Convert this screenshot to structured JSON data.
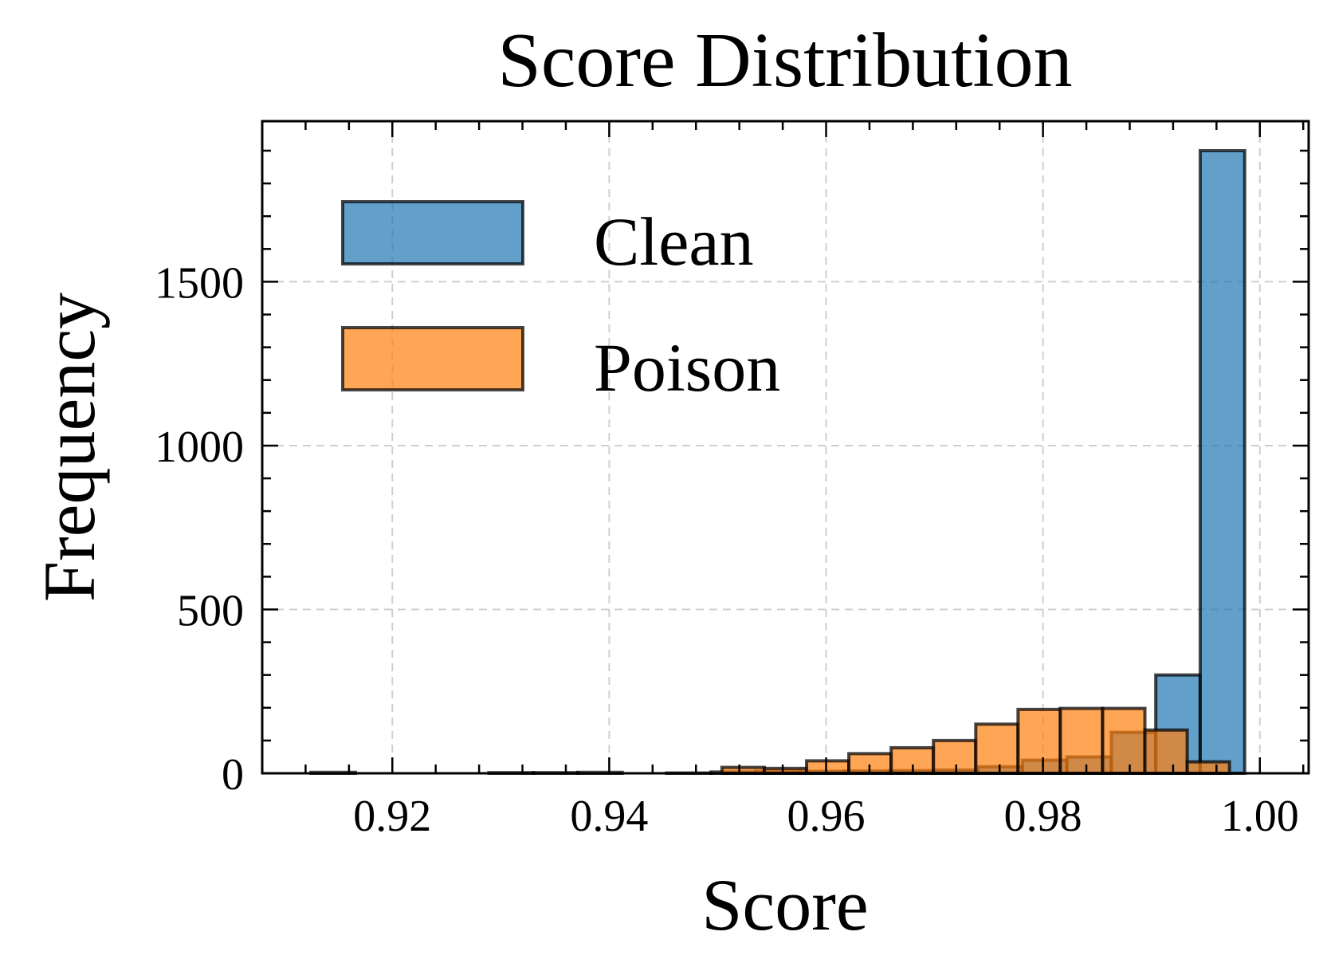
{
  "chart_data": {
    "type": "bar",
    "title": "Score Distribution",
    "xlabel": "Score",
    "ylabel": "Frequency",
    "xlim": [
      0.908,
      1.0045
    ],
    "ylim": [
      0,
      1990
    ],
    "x_ticks": [
      0.92,
      0.94,
      0.96,
      0.98,
      1.0
    ],
    "x_tick_labels": [
      "0.92",
      "0.94",
      "0.96",
      "0.98",
      "1.00"
    ],
    "y_ticks": [
      0,
      500,
      1000,
      1500
    ],
    "y_tick_labels": [
      "0",
      "500",
      "1000",
      "1500"
    ],
    "grid": true,
    "legend": {
      "placement": "upper-left"
    },
    "series": [
      {
        "name": "Clean",
        "color": "#1f77b4",
        "opacity": 0.7,
        "bins": [
          {
            "x0": 0.9125,
            "x1": 0.9166,
            "count": 3
          },
          {
            "x0": 0.9166,
            "x1": 0.9207,
            "count": 0
          },
          {
            "x0": 0.9207,
            "x1": 0.9248,
            "count": 0
          },
          {
            "x0": 0.9248,
            "x1": 0.9289,
            "count": 0
          },
          {
            "x0": 0.9289,
            "x1": 0.933,
            "count": 2
          },
          {
            "x0": 0.933,
            "x1": 0.9371,
            "count": 2
          },
          {
            "x0": 0.9371,
            "x1": 0.9412,
            "count": 3
          },
          {
            "x0": 0.9412,
            "x1": 0.9453,
            "count": 0
          },
          {
            "x0": 0.9453,
            "x1": 0.9494,
            "count": 1
          },
          {
            "x0": 0.9494,
            "x1": 0.9535,
            "count": 4
          },
          {
            "x0": 0.9535,
            "x1": 0.9576,
            "count": 6
          },
          {
            "x0": 0.9576,
            "x1": 0.9617,
            "count": 6
          },
          {
            "x0": 0.9617,
            "x1": 0.9658,
            "count": 7
          },
          {
            "x0": 0.9658,
            "x1": 0.9699,
            "count": 8
          },
          {
            "x0": 0.9699,
            "x1": 0.974,
            "count": 10
          },
          {
            "x0": 0.974,
            "x1": 0.9781,
            "count": 20
          },
          {
            "x0": 0.9781,
            "x1": 0.9822,
            "count": 40
          },
          {
            "x0": 0.9822,
            "x1": 0.9863,
            "count": 50
          },
          {
            "x0": 0.9863,
            "x1": 0.9904,
            "count": 125
          },
          {
            "x0": 0.9904,
            "x1": 0.9945,
            "count": 300
          },
          {
            "x0": 0.9945,
            "x1": 0.9986,
            "count": 1900
          }
        ]
      },
      {
        "name": "Poison",
        "color": "#ff7f0e",
        "opacity": 0.7,
        "bins": [
          {
            "x0": 0.9504,
            "x1": 0.9543,
            "count": 18
          },
          {
            "x0": 0.9543,
            "x1": 0.9582,
            "count": 15
          },
          {
            "x0": 0.9582,
            "x1": 0.9621,
            "count": 38
          },
          {
            "x0": 0.9621,
            "x1": 0.966,
            "count": 60
          },
          {
            "x0": 0.966,
            "x1": 0.9699,
            "count": 78
          },
          {
            "x0": 0.9699,
            "x1": 0.9738,
            "count": 100
          },
          {
            "x0": 0.9738,
            "x1": 0.9777,
            "count": 150
          },
          {
            "x0": 0.9777,
            "x1": 0.9816,
            "count": 195
          },
          {
            "x0": 0.9816,
            "x1": 0.9855,
            "count": 198
          },
          {
            "x0": 0.9855,
            "x1": 0.9894,
            "count": 198
          },
          {
            "x0": 0.9894,
            "x1": 0.9933,
            "count": 132
          },
          {
            "x0": 0.9933,
            "x1": 0.9972,
            "count": 35
          }
        ]
      }
    ]
  }
}
